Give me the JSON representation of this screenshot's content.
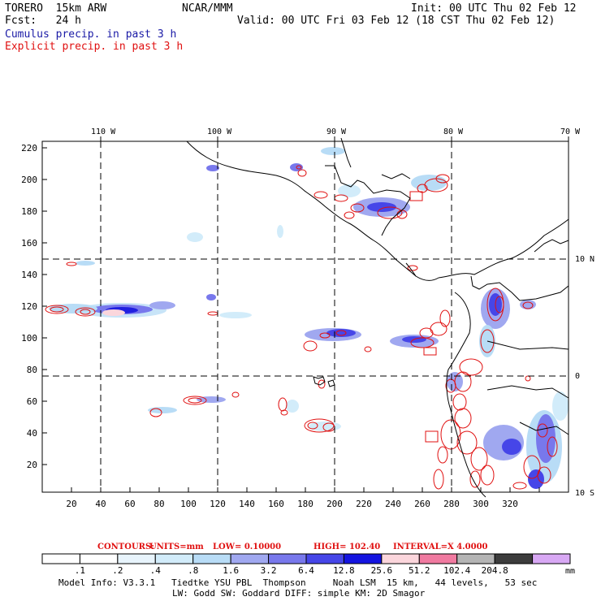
{
  "header": {
    "model": "TORERO  15km ARW",
    "org": "NCAR/MMM",
    "init": "Init: 00 UTC Thu 02 Feb 12",
    "fcst": "Fcst:   24 h",
    "valid": "Valid: 00 UTC Fri 03 Feb 12 (18 CST Thu 02 Feb 12)",
    "line_cumulus": "Cumulus precip. in past 3 h",
    "line_explicit": "Explicit precip. in past 3 h"
  },
  "colors": {
    "cumulus_text": "#1a1aa6",
    "explicit_text": "#e01010",
    "grid": "#000000",
    "contour": "#e01010"
  },
  "map": {
    "lon_labels": [
      "110 W",
      "100 W",
      "90 W",
      "80 W",
      "70 W"
    ],
    "lat_labels": [
      "10 N",
      "0",
      "10 S"
    ],
    "y_ticks": [
      "220",
      "200",
      "180",
      "160",
      "140",
      "120",
      "100",
      "80",
      "60",
      "40",
      "20"
    ],
    "x_ticks": [
      "20",
      "40",
      "60",
      "80",
      "100",
      "120",
      "140",
      "160",
      "180",
      "200",
      "220",
      "240",
      "260",
      "280",
      "300",
      "320"
    ]
  },
  "contours": {
    "label_contours": "CONTOURS:",
    "label_units": "UNITS=mm",
    "label_low": "LOW= 0.10000",
    "label_high": "HIGH=  102.40",
    "label_interval": "INTERVAL=X  4.0000"
  },
  "legend": {
    "colors": [
      "#ffffff",
      "#ffffff",
      "#e8f4fc",
      "#d2ecfa",
      "#b8dcf6",
      "#a0a8f0",
      "#7878ec",
      "#4646e8",
      "#1414e0",
      "#fbd6dc",
      "#f07aa0",
      "#b4b4b4",
      "#3c3c3c",
      "#d8a8f4"
    ],
    "labels": [
      ".1",
      ".2",
      ".4",
      ".8",
      "1.6",
      "3.2",
      "6.4",
      "12.8",
      "25.6",
      "51.2",
      "102.4",
      "204.8"
    ],
    "unit": "mm"
  },
  "footer": {
    "line1": "Model Info: V3.3.1   Tiedtke YSU PBL  Thompson     Noah LSM  15 km,   44 levels,   53 sec",
    "line2": "LW: Godd SW: Goddard DIFF: simple KM: 2D Smagor"
  }
}
